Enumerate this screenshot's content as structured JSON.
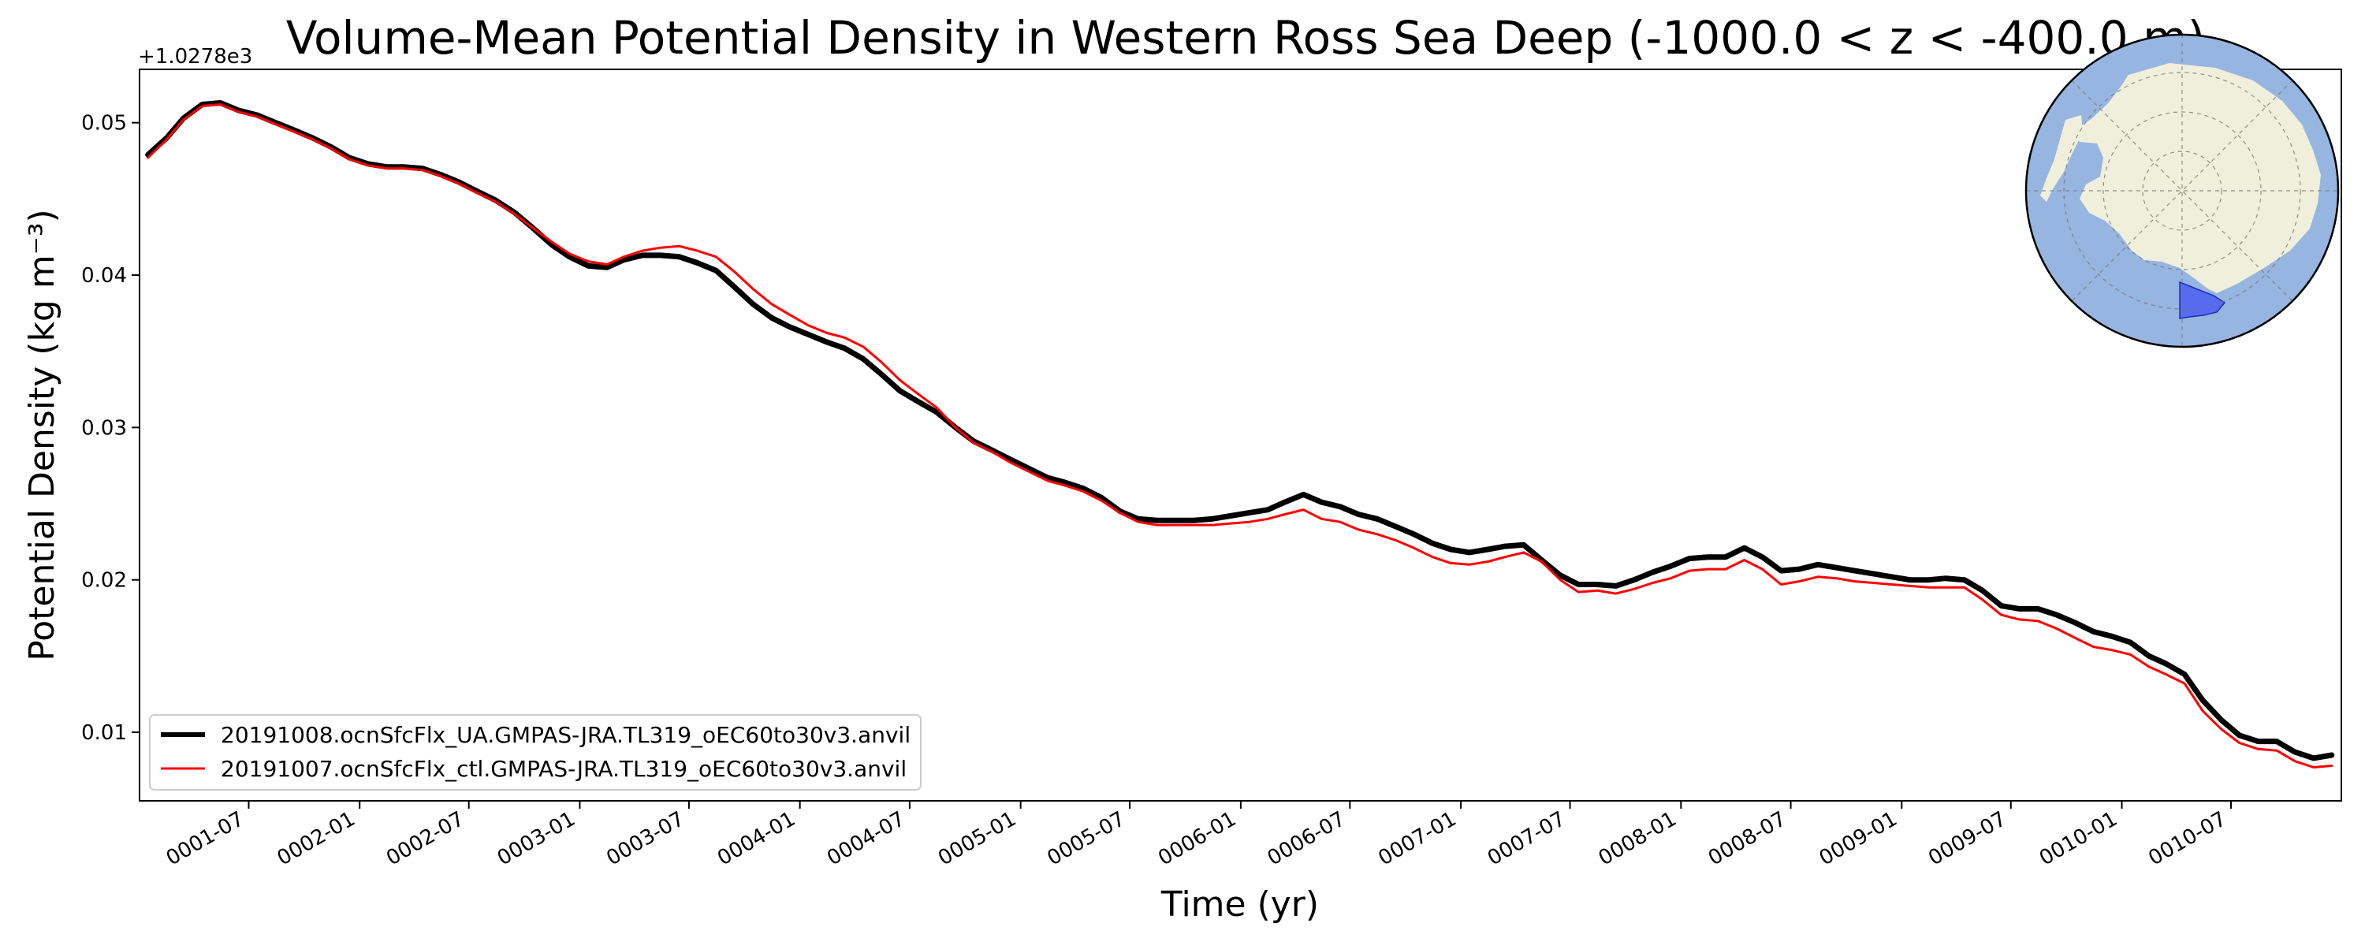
{
  "chart_data": {
    "type": "line",
    "title": "Volume-Mean Potential Density in Western Ross Sea Deep (-1000.0 < z < -400.0 m)",
    "xlabel": "Time (yr)",
    "ylabel": "Potential Density (kg m⁻³)",
    "y_offset_label": "+1.0278e3",
    "y_offset": 1027.8,
    "xlim": [
      "0001-01-01",
      "0010-12-31"
    ],
    "ylim": [
      0.0055,
      0.0535
    ],
    "x_ticks": [
      "0001-07",
      "0002-01",
      "0002-07",
      "0003-01",
      "0003-07",
      "0004-01",
      "0004-07",
      "0005-01",
      "0005-07",
      "0006-01",
      "0006-07",
      "0007-01",
      "0007-07",
      "0008-01",
      "0008-07",
      "0009-01",
      "0009-07",
      "0010-01",
      "0010-07"
    ],
    "y_ticks": [
      {
        "value": 0.01,
        "label": "0.01"
      },
      {
        "value": 0.02,
        "label": "0.02"
      },
      {
        "value": 0.03,
        "label": "0.03"
      },
      {
        "value": 0.04,
        "label": "0.04"
      },
      {
        "value": 0.05,
        "label": "0.05"
      }
    ],
    "grid": false,
    "legend_position": "lower-left",
    "x": [
      "0001-01",
      "0001-02",
      "0001-03",
      "0001-04",
      "0001-05",
      "0001-06",
      "0001-07",
      "0001-08",
      "0001-09",
      "0001-10",
      "0001-11",
      "0001-12",
      "0002-01",
      "0002-02",
      "0002-03",
      "0002-04",
      "0002-05",
      "0002-06",
      "0002-07",
      "0002-08",
      "0002-09",
      "0002-10",
      "0002-11",
      "0002-12",
      "0003-01",
      "0003-02",
      "0003-03",
      "0003-04",
      "0003-05",
      "0003-06",
      "0003-07",
      "0003-08",
      "0003-09",
      "0003-10",
      "0003-11",
      "0003-12",
      "0004-01",
      "0004-02",
      "0004-03",
      "0004-04",
      "0004-05",
      "0004-06",
      "0004-07",
      "0004-08",
      "0004-09",
      "0004-10",
      "0004-11",
      "0004-12",
      "0005-01",
      "0005-02",
      "0005-03",
      "0005-04",
      "0005-05",
      "0005-06",
      "0005-07",
      "0005-08",
      "0005-09",
      "0005-10",
      "0005-11",
      "0005-12",
      "0006-01",
      "0006-02",
      "0006-03",
      "0006-04",
      "0006-05",
      "0006-06",
      "0006-07",
      "0006-08",
      "0006-09",
      "0006-10",
      "0006-11",
      "0006-12",
      "0007-01",
      "0007-02",
      "0007-03",
      "0007-04",
      "0007-05",
      "0007-06",
      "0007-07",
      "0007-08",
      "0007-09",
      "0007-10",
      "0007-11",
      "0007-12",
      "0008-01",
      "0008-02",
      "0008-03",
      "0008-04",
      "0008-05",
      "0008-06",
      "0008-07",
      "0008-08",
      "0008-09",
      "0008-10",
      "0008-11",
      "0008-12",
      "0009-01",
      "0009-02",
      "0009-03",
      "0009-04",
      "0009-05",
      "0009-06",
      "0009-07",
      "0009-08",
      "0009-09",
      "0009-10",
      "0009-11",
      "0009-12",
      "0010-01",
      "0010-02",
      "0010-03",
      "0010-04",
      "0010-05",
      "0010-06",
      "0010-07",
      "0010-08",
      "0010-09",
      "0010-10",
      "0010-11",
      "0010-12"
    ],
    "series": [
      {
        "name": "20191008.ocnSfcFlx_UA.GMPAS-JRA.TL319_oEC60to30v3.anvil",
        "color": "#000000",
        "values": [
          0.0479,
          0.049,
          0.0503,
          0.0512,
          0.0513,
          0.0508,
          0.0505,
          0.05,
          0.0495,
          0.049,
          0.0484,
          0.0477,
          0.0473,
          0.0471,
          0.0471,
          0.047,
          0.0466,
          0.0461,
          0.0455,
          0.0449,
          0.0441,
          0.0431,
          0.042,
          0.0412,
          0.0406,
          0.0405,
          0.041,
          0.0413,
          0.0413,
          0.0412,
          0.0408,
          0.0403,
          0.0392,
          0.0381,
          0.0372,
          0.0366,
          0.0361,
          0.0356,
          0.0352,
          0.0345,
          0.0335,
          0.0324,
          0.0317,
          0.031,
          0.03,
          0.0291,
          0.0285,
          0.0279,
          0.0273,
          0.0267,
          0.0264,
          0.026,
          0.0254,
          0.0245,
          0.024,
          0.0239,
          0.0239,
          0.0239,
          0.024,
          0.0242,
          0.0244,
          0.0246,
          0.0251,
          0.0256,
          0.0251,
          0.0248,
          0.0243,
          0.024,
          0.0235,
          0.023,
          0.0224,
          0.022,
          0.0218,
          0.022,
          0.0222,
          0.0223,
          0.0213,
          0.0203,
          0.0197,
          0.0197,
          0.0196,
          0.02,
          0.0205,
          0.0209,
          0.0214,
          0.0215,
          0.0215,
          0.0221,
          0.0215,
          0.0206,
          0.0207,
          0.021,
          0.0208,
          0.0206,
          0.0204,
          0.0202,
          0.02,
          0.02,
          0.0201,
          0.02,
          0.0193,
          0.0183,
          0.0181,
          0.0181,
          0.0177,
          0.0172,
          0.0166,
          0.0163,
          0.0159,
          0.015,
          0.0145,
          0.0138,
          0.0121,
          0.0108,
          0.0098,
          0.0094,
          0.0094,
          0.0087,
          0.0083,
          0.0085
        ]
      },
      {
        "name": "20191007.ocnSfcFlx_ctl.GMPAS-JRA.TL319_oEC60to30v3.anvil",
        "color": "#ff0000",
        "values": [
          0.0477,
          0.0489,
          0.0502,
          0.0511,
          0.0512,
          0.0507,
          0.0504,
          0.0499,
          0.0494,
          0.0489,
          0.0483,
          0.0476,
          0.0472,
          0.047,
          0.047,
          0.0469,
          0.0465,
          0.046,
          0.0454,
          0.0448,
          0.044,
          0.0431,
          0.0422,
          0.0414,
          0.0409,
          0.0407,
          0.0412,
          0.0416,
          0.0418,
          0.0419,
          0.0416,
          0.0412,
          0.0402,
          0.0391,
          0.0381,
          0.0374,
          0.0367,
          0.0362,
          0.0359,
          0.0353,
          0.0343,
          0.0331,
          0.0322,
          0.0313,
          0.03,
          0.029,
          0.0284,
          0.0277,
          0.0271,
          0.0265,
          0.0262,
          0.0258,
          0.0252,
          0.0244,
          0.0238,
          0.0236,
          0.0236,
          0.0236,
          0.0236,
          0.0237,
          0.0238,
          0.024,
          0.0243,
          0.0246,
          0.024,
          0.0238,
          0.0233,
          0.023,
          0.0226,
          0.0221,
          0.0215,
          0.0211,
          0.021,
          0.0212,
          0.0215,
          0.0218,
          0.0212,
          0.02,
          0.0192,
          0.0193,
          0.0191,
          0.0194,
          0.0198,
          0.0201,
          0.0206,
          0.0207,
          0.0207,
          0.0213,
          0.0207,
          0.0197,
          0.0199,
          0.0202,
          0.0201,
          0.0199,
          0.0198,
          0.0197,
          0.0196,
          0.0195,
          0.0195,
          0.0195,
          0.0187,
          0.0177,
          0.0174,
          0.0173,
          0.0168,
          0.0162,
          0.0156,
          0.0154,
          0.0151,
          0.0143,
          0.0138,
          0.0132,
          0.0114,
          0.0102,
          0.0093,
          0.0089,
          0.0088,
          0.0081,
          0.0077,
          0.0078
        ]
      }
    ]
  },
  "inset_map": {
    "ocean_color": "#97b5e1",
    "land_color": "#efefdb",
    "region_color": "#4f63f1"
  }
}
